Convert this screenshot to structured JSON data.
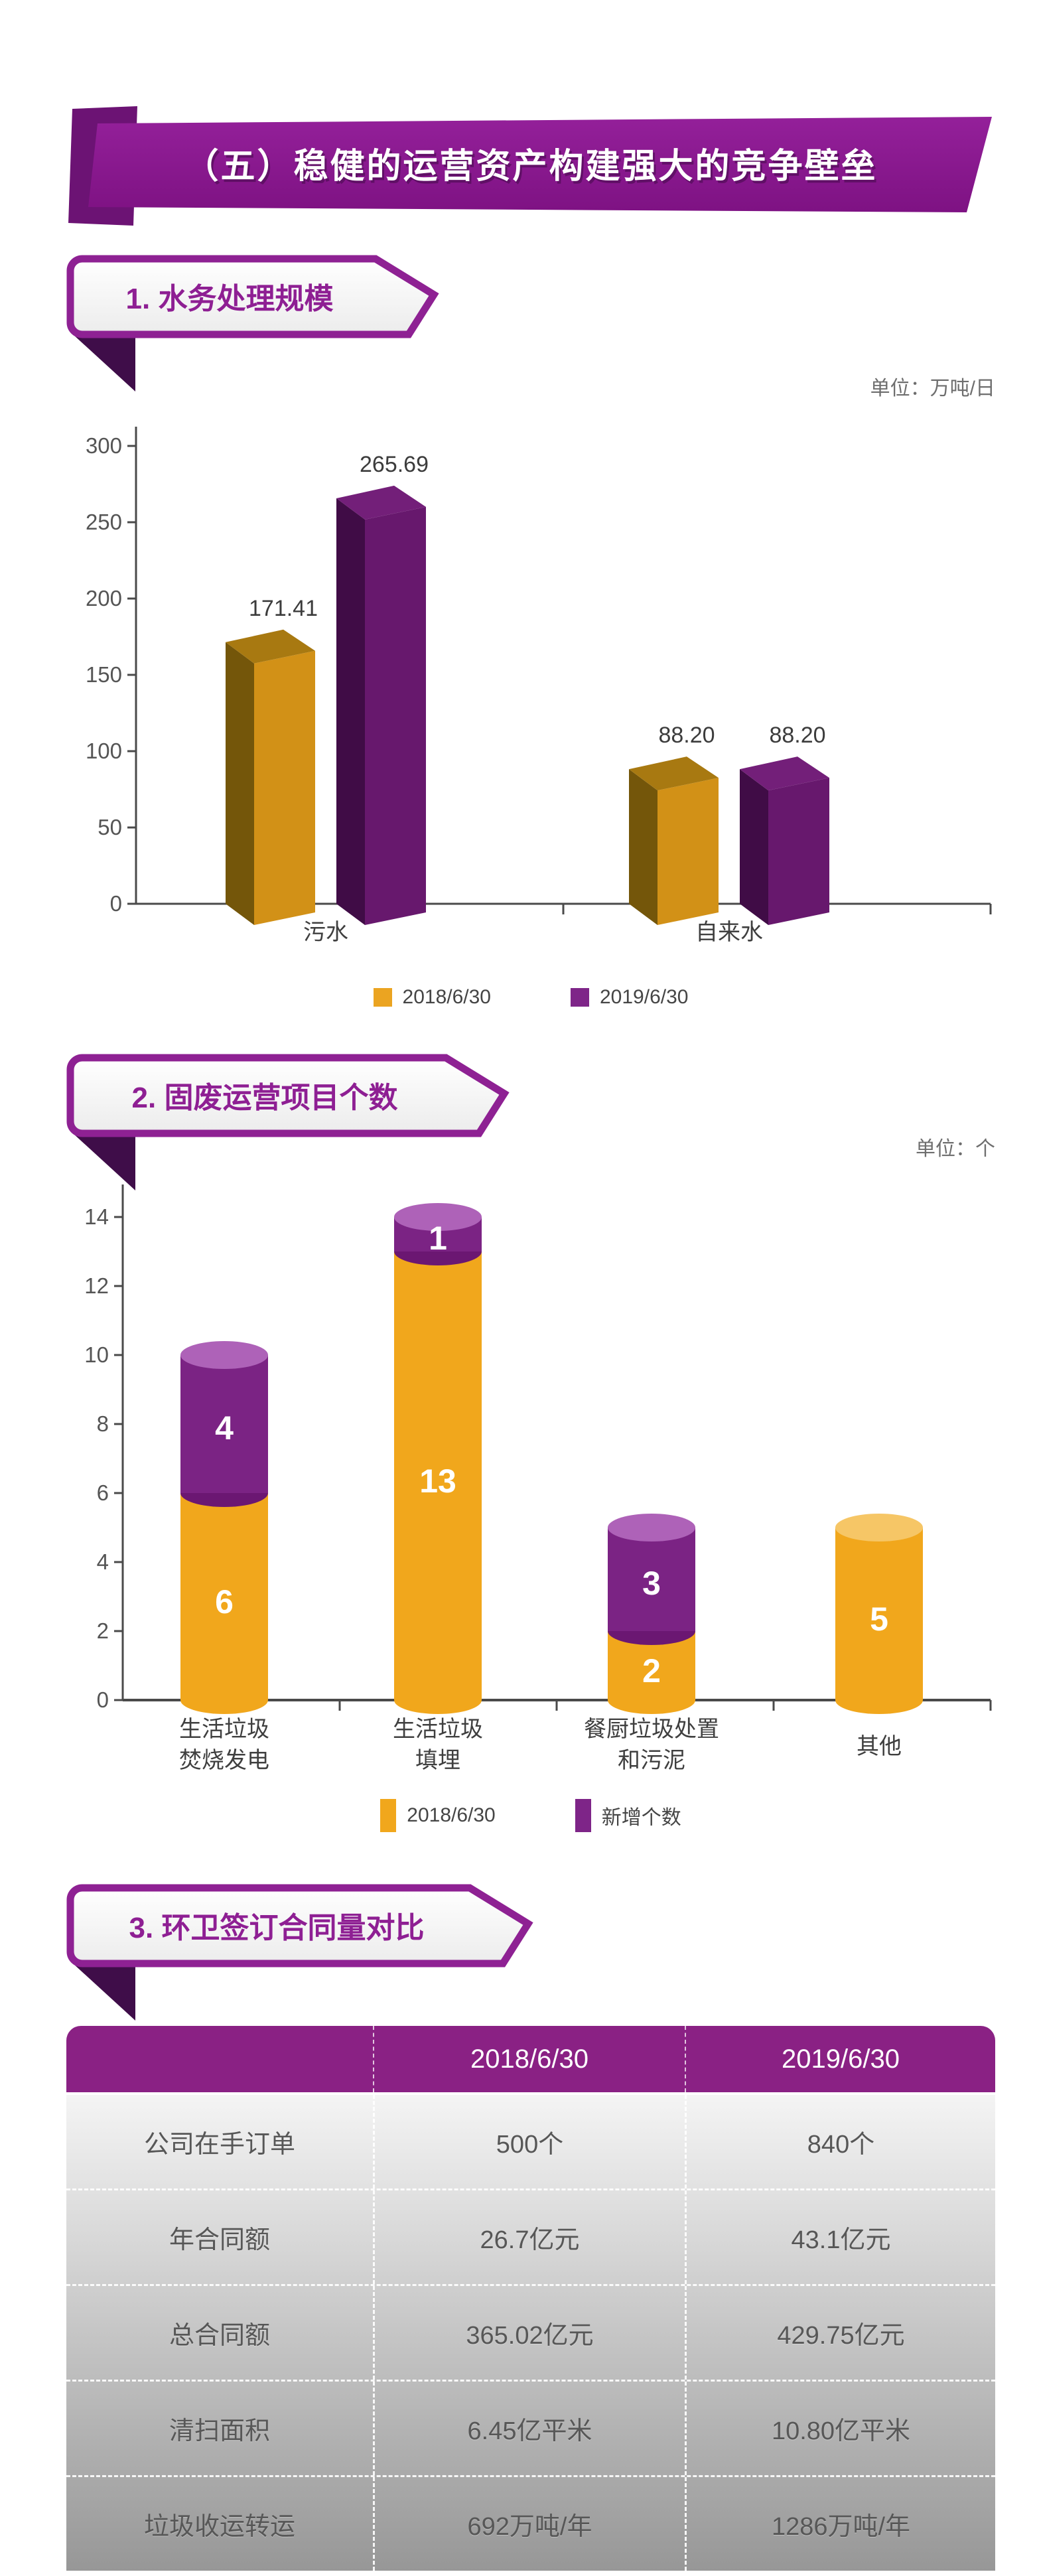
{
  "header": {
    "title": "（五）稳健的运营资产构建强大的竞争壁垒"
  },
  "sections": {
    "water": {
      "title": "1. 水务处理规模",
      "unit": "单位：万吨/日"
    },
    "solid": {
      "title": "2. 固废运营项目个数",
      "unit": "单位：个"
    },
    "sanitation": {
      "title": "3. 环卫签订合同量对比"
    }
  },
  "chart_data": [
    {
      "type": "bar",
      "variant": "3d-grouped-column",
      "title": "水务处理规模",
      "unit": "万吨/日",
      "categories": [
        "污水",
        "自来水"
      ],
      "series": [
        {
          "name": "2018/6/30",
          "color": "#D29117",
          "legend_color": "#EBA421",
          "values": [
            171.41,
            88.2
          ]
        },
        {
          "name": "2019/6/30",
          "color": "#67186D",
          "legend_color": "#7E2588",
          "values": [
            265.69,
            88.2
          ]
        }
      ],
      "ylim": [
        0,
        300
      ],
      "ytick_step": 50,
      "grid": false,
      "legend_position": "bottom",
      "value_labels": [
        "171.41",
        "265.69",
        "88.20",
        "88.20"
      ]
    },
    {
      "type": "bar",
      "variant": "3d-cylinder-stacked",
      "title": "固废运营项目个数",
      "unit": "个",
      "categories": [
        [
          "生活垃圾",
          "焚烧发电"
        ],
        [
          "生活垃圾",
          "填埋"
        ],
        [
          "餐厨垃圾处置",
          "和污泥"
        ],
        [
          "其他"
        ]
      ],
      "series": [
        {
          "name": "2018/6/30",
          "color": "#F1A71C",
          "legend_color": "#F1A71C",
          "values": [
            6,
            13,
            2,
            5
          ]
        },
        {
          "name": "新增个数",
          "color": "#7B2384",
          "legend_color": "#7E2588",
          "values": [
            4,
            1,
            3,
            0
          ]
        }
      ],
      "ylim": [
        0,
        14
      ],
      "ytick_step": 2,
      "grid": false,
      "legend_position": "bottom"
    },
    {
      "type": "table",
      "title": "环卫签订合同量对比",
      "columns": [
        "",
        "2018/6/30",
        "2019/6/30"
      ],
      "rows": [
        [
          "公司在手订单",
          "500个",
          "840个"
        ],
        [
          "年合同额",
          "26.7亿元",
          "43.1亿元"
        ],
        [
          "总合同额",
          "365.02亿元",
          "429.75亿元"
        ],
        [
          "清扫面积",
          "6.45亿平米",
          "10.80亿平米"
        ],
        [
          "垃圾收运转运",
          "692万吨/年",
          "1286万吨/年"
        ]
      ]
    }
  ],
  "colors": {
    "banner_purple": "#8A198E",
    "banner_tab": "#6C1374",
    "ribbon_border": "#8E2193",
    "ribbon_fold": "#3F0D49",
    "title_purple": "#8E1F93",
    "axis": "#4A4A4A",
    "tick_text": "#555555",
    "value_text": "#3C3C3C",
    "category_text": "#3F3F3F",
    "unit_text": "#6E6E6E",
    "legend_text": "#454545",
    "bar_orange": {
      "front": "#D29117",
      "side": "#74560A",
      "top": "#A87911"
    },
    "bar_purple": {
      "front": "#67186D",
      "side": "#400C46",
      "top": "#731F79"
    },
    "cyl_orange": {
      "body": "#F1A71C",
      "top": "#F6C666"
    },
    "cyl_purple": {
      "body": "#7B2384",
      "bottom": "#6B1772",
      "top": "#AE62B8"
    },
    "table": {
      "header_bg": "#8A2184",
      "header_text": "#FFFFFF",
      "body_top": "#F4F4F4",
      "body_bottom": "#979797",
      "cell_text": "#575757"
    }
  }
}
